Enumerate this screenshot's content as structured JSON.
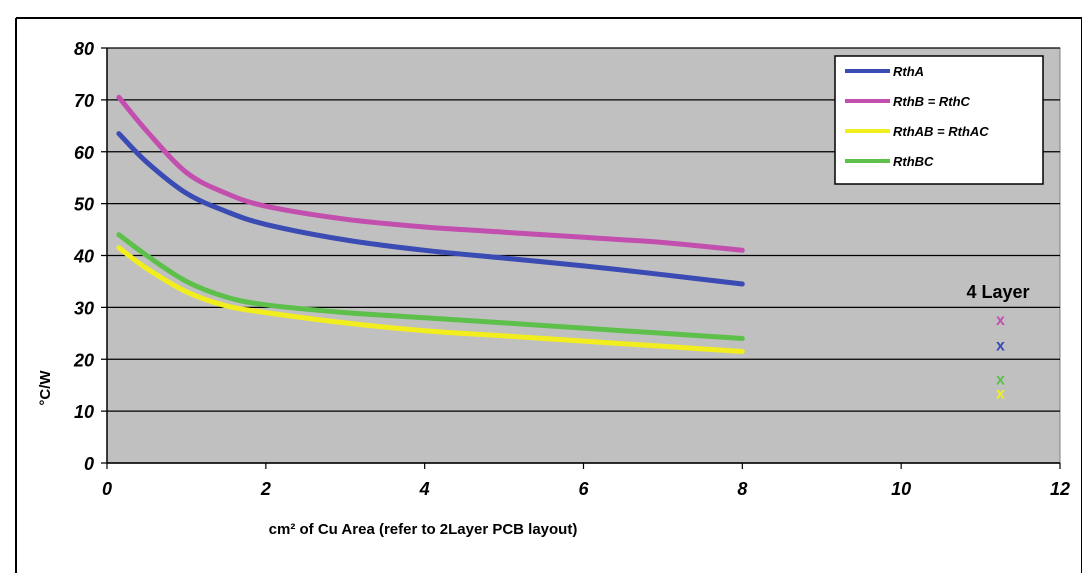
{
  "chart_data": {
    "type": "line",
    "title": "",
    "xlabel": "cm² of Cu Area (refer to 2Layer PCB layout)",
    "ylabel": "°C/W",
    "xlim": [
      0,
      12
    ],
    "ylim": [
      0,
      80
    ],
    "x_ticks": [
      "0",
      "2",
      "4",
      "6",
      "8",
      "10",
      "12"
    ],
    "y_ticks": [
      "0",
      "10",
      "20",
      "30",
      "40",
      "50",
      "60",
      "70",
      "80"
    ],
    "grid": "horizontal",
    "plot_background": "#c0c0c0",
    "legend_position": "top-right",
    "series": [
      {
        "name": "RthA",
        "color": "#3a4bb3",
        "x": [
          0.15,
          0.5,
          1,
          1.5,
          2,
          3,
          4,
          5,
          6,
          7,
          8
        ],
        "y": [
          63.5,
          58,
          52,
          48.5,
          46,
          43,
          41,
          39.5,
          38,
          36.3,
          34.5
        ]
      },
      {
        "name": "RthB = RthC",
        "color": "#c24fae",
        "x": [
          0.15,
          0.5,
          1,
          1.5,
          2,
          3,
          4,
          5,
          6,
          7,
          8
        ],
        "y": [
          70.5,
          64,
          56,
          52,
          49.5,
          47,
          45.5,
          44.5,
          43.5,
          42.5,
          41
        ]
      },
      {
        "name": "RthAB = RthAC",
        "color": "#f2ee1e",
        "x": [
          0.15,
          0.5,
          1,
          1.5,
          2,
          3,
          4,
          5,
          6,
          7,
          8
        ],
        "y": [
          41.5,
          37.5,
          33,
          30.3,
          29,
          27,
          25.5,
          24.5,
          23.5,
          22.5,
          21.5
        ]
      },
      {
        "name": "RthBC",
        "color": "#5dc04a",
        "x": [
          0.15,
          0.5,
          1,
          1.5,
          2,
          3,
          4,
          5,
          6,
          7,
          8
        ],
        "y": [
          44,
          40,
          35,
          32,
          30.5,
          29,
          28,
          27,
          26,
          25,
          24
        ]
      }
    ],
    "annotation": {
      "title": "4 Layer",
      "markers": [
        {
          "label": "x",
          "x": 11.25,
          "y": 27.8,
          "color": "#c24fae"
        },
        {
          "label": "x",
          "x": 11.25,
          "y": 22.8,
          "color": "#3a4bb3"
        },
        {
          "label": "x",
          "x": 11.25,
          "y": 16.3,
          "color": "#5dc04a"
        },
        {
          "label": "x",
          "x": 11.25,
          "y": 13.6,
          "color": "#f2ee1e"
        }
      ]
    }
  }
}
